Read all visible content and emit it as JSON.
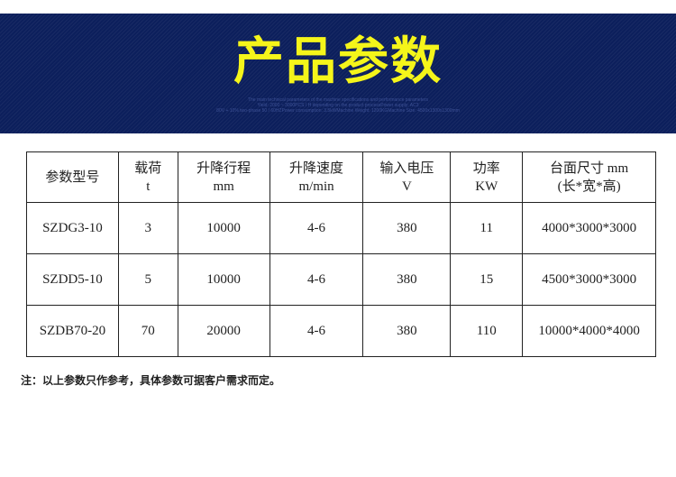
{
  "banner": {
    "title": "产品参数",
    "subtitle_lines": [
      "The main technical parameters of the machine specifications and performance parameters",
      "Yield: 2000 ~ 3000PCS / H depending on the product processPower supply: AC3",
      "80V + 10% two-phase 50 / 60HZPower consumption: 3.5kWMachine Weight: 1200KGMachine Size: 4500x1300x1300mm"
    ]
  },
  "table": {
    "headers": [
      [
        "参数型号"
      ],
      [
        "载荷",
        "t"
      ],
      [
        "升降行程",
        "mm"
      ],
      [
        "升降速度",
        "m/min"
      ],
      [
        "输入电压",
        "V"
      ],
      [
        "功率",
        "KW"
      ],
      [
        "台面尺寸 mm",
        "(长*宽*高)"
      ]
    ],
    "rows": [
      [
        "SZDG3-10",
        "3",
        "10000",
        "4-6",
        "380",
        "11",
        "4000*3000*3000"
      ],
      [
        "SZDD5-10",
        "5",
        "10000",
        "4-6",
        "380",
        "15",
        "4500*3000*3000"
      ],
      [
        "SZDB70-20",
        "70",
        "20000",
        "4-6",
        "380",
        "110",
        "10000*4000*4000"
      ]
    ]
  },
  "note": "注：以上参数只作参考，具体参数可据客户需求而定。",
  "colors": {
    "banner_bg": "#0c1f5c",
    "title": "#f5f51a"
  }
}
